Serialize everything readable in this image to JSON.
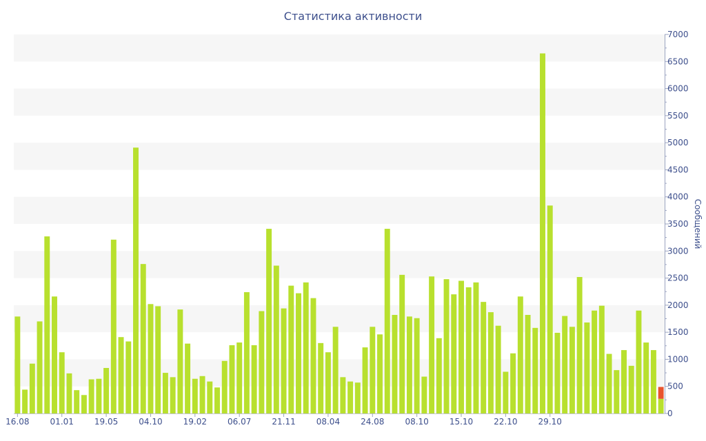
{
  "chart_data": {
    "type": "bar",
    "title": "Статистика активности",
    "ylabel": "Сообщений",
    "xlabel": "",
    "ylim": [
      0,
      7000
    ],
    "yticks": [
      0,
      500,
      1000,
      1500,
      2000,
      2500,
      3000,
      3500,
      4000,
      4500,
      5000,
      5500,
      6000,
      6500,
      7000
    ],
    "x_tick_labels": [
      "16.08",
      "01.01",
      "19.05",
      "04.10",
      "19.02",
      "06.07",
      "21.11",
      "08.04",
      "24.08",
      "08.10",
      "15.10",
      "22.10",
      "29.10"
    ],
    "grid": "alternating horizontal bands",
    "y_axis_position": "right",
    "colors": {
      "bar": "#b8e02e",
      "highlight": "#e8542e",
      "axis_text": "#3d4f8c",
      "band": "#f6f6f6"
    },
    "values": [
      1790,
      440,
      920,
      1700,
      3270,
      2160,
      1130,
      740,
      430,
      340,
      630,
      640,
      840,
      3210,
      1410,
      1330,
      4910,
      2760,
      2020,
      1980,
      750,
      670,
      1920,
      1290,
      640,
      690,
      590,
      480,
      970,
      1260,
      1310,
      2240,
      1260,
      1890,
      3410,
      2730,
      1940,
      2360,
      2220,
      2420,
      2130,
      1300,
      1130,
      1600,
      670,
      590,
      570,
      1220,
      1600,
      1460,
      3410,
      1820,
      2560,
      1790,
      1760,
      680,
      2530,
      1390,
      2480,
      2200,
      2450,
      2330,
      2420,
      2060,
      1870,
      1620,
      770,
      1110,
      2160,
      1820,
      1580,
      6650,
      3840,
      1490,
      1800,
      1600,
      2520,
      1680,
      1900,
      1990,
      1100,
      800,
      1170,
      880,
      1900,
      1310,
      1170,
      270
    ],
    "highlight_bar": {
      "stack_top": 490
    }
  }
}
